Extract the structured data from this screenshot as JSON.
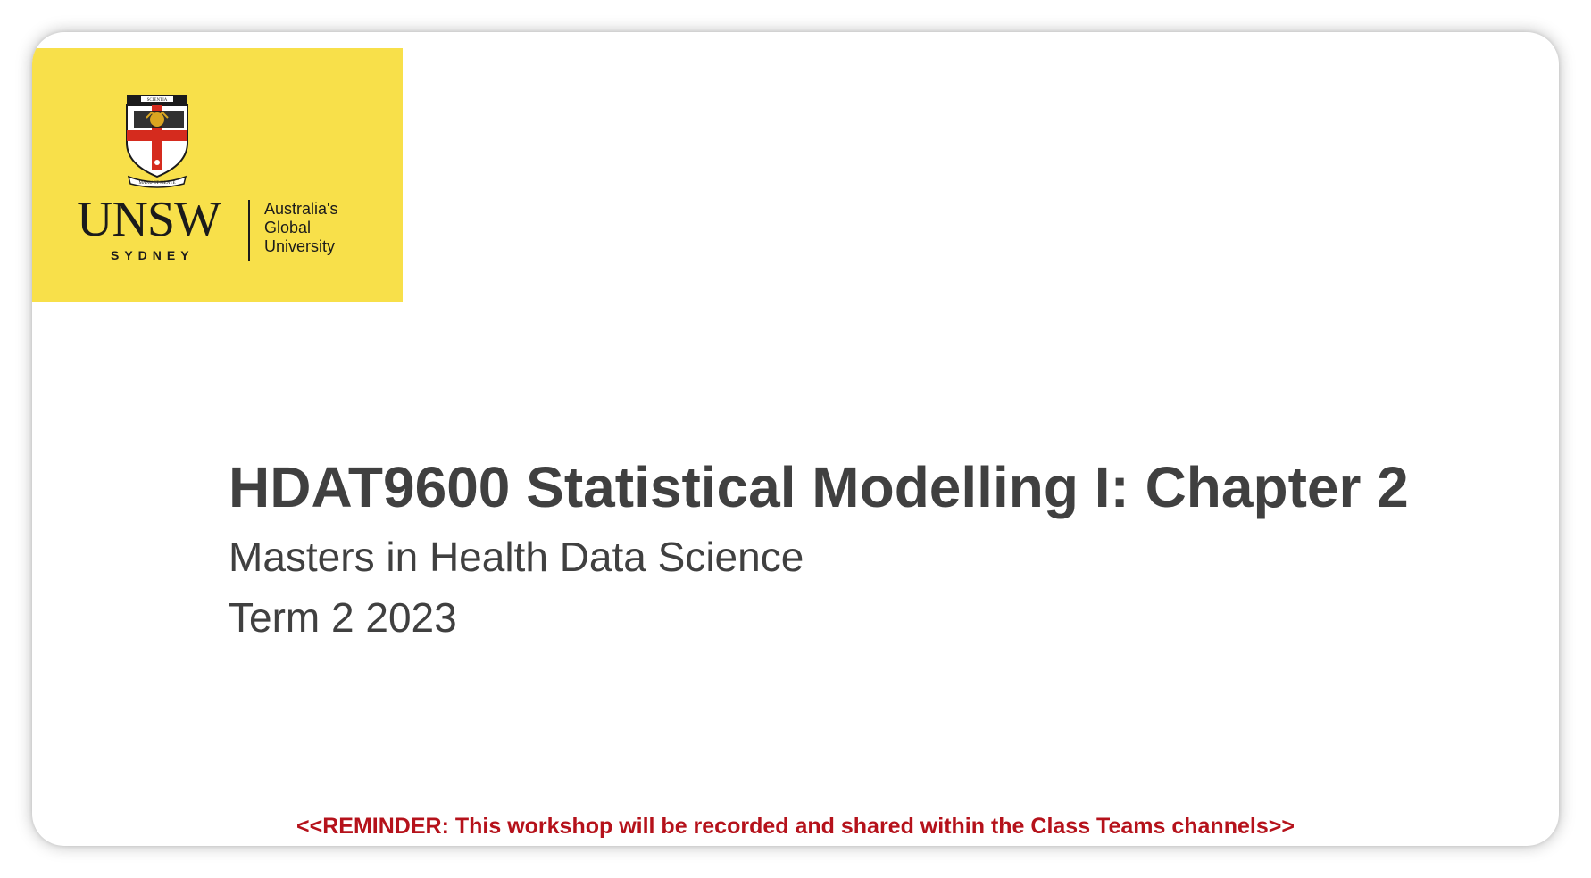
{
  "slide": {
    "logo": {
      "motto": "MANU ET MENTE",
      "crest_banner": "SCIENTIA",
      "wordmark": "UNSW",
      "location": "SYDNEY",
      "tagline": [
        "Australia's",
        "Global",
        "University"
      ],
      "brand_color": "#f8e04a"
    },
    "title": "HDAT9600 Statistical Modelling I: Chapter 2",
    "subtitle": "Masters in Health Data Science",
    "term": "Term 2 2023",
    "reminder": "<<REMINDER: This workshop will be recorded and shared within the Class Teams channels>>",
    "reminder_color": "#b5121b",
    "text_color": "#404040"
  }
}
